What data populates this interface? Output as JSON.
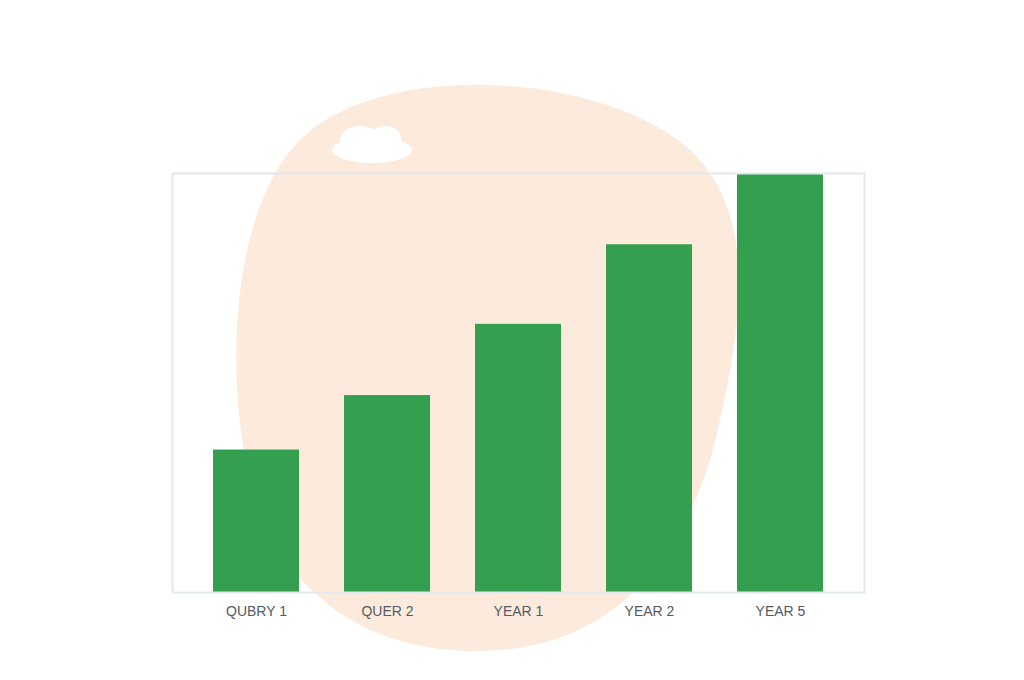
{
  "chart_data": {
    "type": "bar",
    "categories": [
      "QUBRY 1",
      "QUER 2",
      "YEAR 1",
      "YEAR 2",
      "YEAR 5"
    ],
    "values": [
      34,
      47,
      64,
      83,
      100
    ],
    "color": "#34a04f",
    "ylim": [
      0,
      100
    ],
    "yticks": [],
    "grid": false,
    "tick_labels": "x"
  }
}
